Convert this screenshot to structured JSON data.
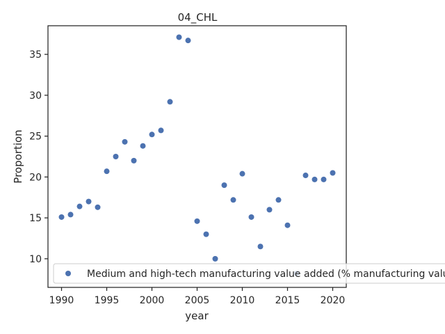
{
  "chart_data": {
    "type": "scatter",
    "title": "04_CHL",
    "xlabel": "year",
    "ylabel": "Proportion",
    "xlim": [
      1988.5,
      2021.5
    ],
    "ylim": [
      6.5,
      38.5
    ],
    "x_ticks": [
      1990,
      1995,
      2000,
      2005,
      2010,
      2015,
      2020
    ],
    "y_ticks": [
      10,
      15,
      20,
      25,
      30,
      35
    ],
    "grid": false,
    "legend_position": "lower-right",
    "series": [
      {
        "name": "Medium and high-tech manufacturing value added (% manufacturing value added)",
        "color": "#4c72b0",
        "x": [
          1990,
          1991,
          1992,
          1993,
          1994,
          1995,
          1996,
          1997,
          1998,
          1999,
          2000,
          2001,
          2002,
          2003,
          2004,
          2005,
          2006,
          2007,
          2008,
          2009,
          2010,
          2011,
          2012,
          2013,
          2014,
          2015,
          2016,
          2017,
          2018,
          2019,
          2020
        ],
        "y": [
          15.1,
          15.4,
          16.4,
          17.0,
          16.3,
          20.7,
          22.5,
          24.3,
          22.0,
          23.8,
          25.2,
          25.7,
          29.2,
          37.1,
          36.7,
          14.6,
          13.0,
          10.0,
          19.0,
          17.2,
          20.4,
          15.1,
          11.5,
          16.0,
          17.2,
          14.1,
          8.2,
          20.2,
          19.7,
          19.7,
          20.5
        ]
      }
    ]
  }
}
